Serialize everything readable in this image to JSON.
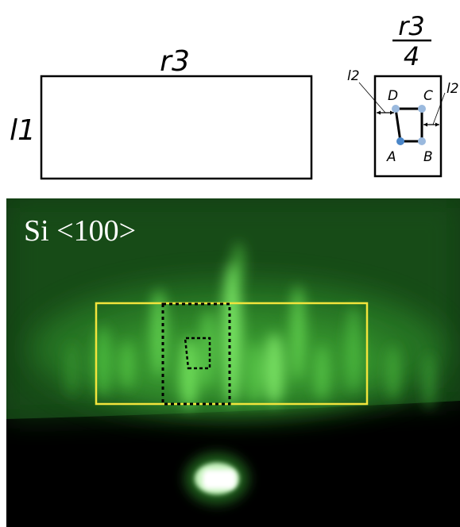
{
  "diagram": {
    "large_rect": {
      "width_label": "r3",
      "height_label": "l1"
    },
    "small_rect": {
      "fraction_numerator": "r3",
      "fraction_denominator": "4",
      "offset_label_left": "l2",
      "offset_label_right": "l2",
      "points": {
        "a": "A",
        "b": "B",
        "c": "C",
        "d": "D"
      }
    }
  },
  "pattern": {
    "label": "Si <100>",
    "colors": {
      "glow": "#5fd24a",
      "background": "#0d2a0d",
      "frame": "#f2e43c",
      "dashed": "#000000"
    }
  }
}
